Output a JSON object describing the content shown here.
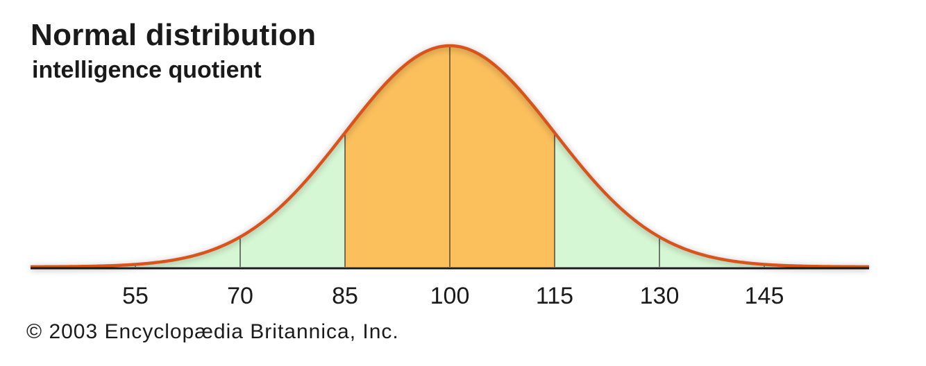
{
  "chart_data": {
    "type": "area",
    "title": "Normal distribution",
    "subtitle": "intelligence quotient",
    "distribution": {
      "mean": 100,
      "sd": 15
    },
    "x_range": [
      40,
      160
    ],
    "xticks": [
      55,
      70,
      85,
      100,
      115,
      130,
      145
    ],
    "xtick_labels": [
      "55",
      "70",
      "85",
      "100",
      "115",
      "130",
      "145"
    ],
    "regions": [
      {
        "from": 85,
        "to": 115,
        "color": "#fbbf5c"
      },
      {
        "from": 40,
        "to": 85,
        "color": "#d6f7d3"
      },
      {
        "from": 115,
        "to": 160,
        "color": "#d6f7d3"
      }
    ],
    "curve_color": "#d9531e",
    "axis_color": "#1a1a1a",
    "copyright": "© 2003 Encyclopædia Britannica, Inc."
  }
}
